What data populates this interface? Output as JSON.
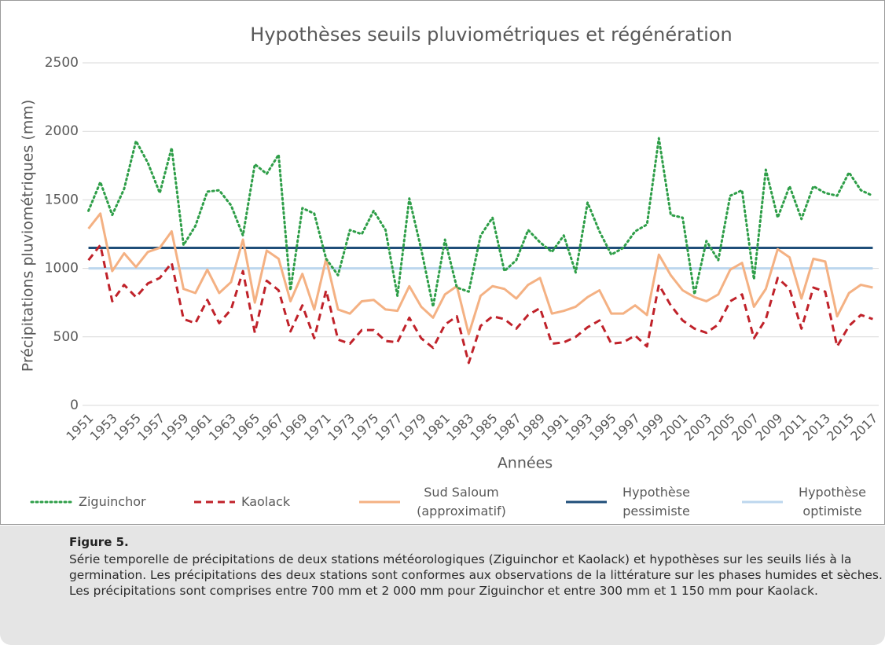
{
  "chart_data": {
    "type": "line",
    "title": "Hypothèses seuils pluviométriques et régénération",
    "x_label": "Années",
    "y_label": "Précipitations pluviométriques (mm)",
    "categories": [
      "1951",
      null,
      "1953",
      null,
      "1955",
      null,
      "1957",
      null,
      "1959",
      null,
      "1961",
      null,
      "1963",
      null,
      "1965",
      null,
      "1967",
      null,
      "1969",
      null,
      "1971",
      null,
      "1973",
      null,
      "1975",
      null,
      "1977",
      null,
      "1979",
      null,
      "1981",
      null,
      "1983",
      null,
      "1985",
      null,
      "1987",
      null,
      "1989",
      null,
      "1991",
      null,
      "1993",
      null,
      "1995",
      null,
      "1997",
      null,
      "1999",
      null,
      "2001",
      null,
      "2003",
      null,
      "2005",
      null,
      "2007",
      null,
      "2009",
      null,
      "2011",
      null,
      "2013",
      null,
      "2015",
      null,
      "2017"
    ],
    "ylim": [
      0,
      2500
    ],
    "yticks": [
      0,
      500,
      1000,
      1500,
      2000,
      2500
    ],
    "grid": true,
    "legend": "bottom",
    "series": [
      {
        "name": "Ziguinchor",
        "color": "#2e9e48",
        "line_style": "dotted",
        "values": [
          1420,
          1630,
          1390,
          1580,
          1930,
          1770,
          1550,
          1880,
          1170,
          1310,
          1560,
          1570,
          1460,
          1240,
          1760,
          1690,
          1830,
          840,
          1440,
          1400,
          1070,
          950,
          1280,
          1250,
          1420,
          1280,
          800,
          1510,
          1140,
          720,
          1210,
          860,
          830,
          1240,
          1370,
          980,
          1060,
          1280,
          1190,
          1120,
          1240,
          970,
          1480,
          1270,
          1100,
          1150,
          1270,
          1320,
          1950,
          1390,
          1370,
          810,
          1200,
          1060,
          1530,
          1570,
          920,
          1720,
          1370,
          1600,
          1360,
          1600,
          1550,
          1530,
          1700,
          1570,
          1530
        ]
      },
      {
        "name": "Kaolack",
        "color": "#c0222a",
        "line_style": "dashed",
        "values": [
          1060,
          1170,
          760,
          880,
          790,
          890,
          930,
          1040,
          630,
          600,
          770,
          600,
          700,
          980,
          530,
          910,
          840,
          540,
          730,
          490,
          840,
          480,
          450,
          550,
          550,
          470,
          460,
          640,
          490,
          420,
          590,
          650,
          310,
          580,
          650,
          630,
          560,
          660,
          710,
          450,
          460,
          500,
          570,
          620,
          450,
          460,
          510,
          430,
          880,
          730,
          620,
          560,
          530,
          590,
          760,
          810,
          490,
          630,
          930,
          850,
          560,
          860,
          830,
          430,
          580,
          660,
          630
        ]
      },
      {
        "name": "Sud Saloum (approximatif)",
        "color": "#f4b183",
        "line_style": "solid",
        "values": [
          1290,
          1400,
          980,
          1110,
          1010,
          1120,
          1150,
          1270,
          850,
          820,
          990,
          820,
          900,
          1210,
          750,
          1130,
          1070,
          760,
          960,
          700,
          1070,
          700,
          670,
          760,
          770,
          700,
          690,
          870,
          720,
          640,
          810,
          870,
          520,
          800,
          870,
          850,
          780,
          880,
          930,
          670,
          690,
          720,
          790,
          840,
          670,
          670,
          730,
          660,
          1100,
          950,
          840,
          790,
          760,
          810,
          990,
          1040,
          720,
          850,
          1140,
          1080,
          780,
          1070,
          1050,
          650,
          820,
          880,
          860
        ]
      },
      {
        "name": "Hypothèse pessimiste",
        "color": "#1f4e79",
        "line_style": "solid",
        "values": [
          1150,
          1150,
          1150,
          1150,
          1150,
          1150,
          1150,
          1150,
          1150,
          1150,
          1150,
          1150,
          1150,
          1150,
          1150,
          1150,
          1150,
          1150,
          1150,
          1150,
          1150,
          1150,
          1150,
          1150,
          1150,
          1150,
          1150,
          1150,
          1150,
          1150,
          1150,
          1150,
          1150,
          1150,
          1150,
          1150,
          1150,
          1150,
          1150,
          1150,
          1150,
          1150,
          1150,
          1150,
          1150,
          1150,
          1150,
          1150,
          1150,
          1150,
          1150,
          1150,
          1150,
          1150,
          1150,
          1150,
          1150,
          1150,
          1150,
          1150,
          1150,
          1150,
          1150,
          1150,
          1150,
          1150,
          1150
        ]
      },
      {
        "name": "Hypothèse optimiste",
        "color": "#bdd7ee",
        "line_style": "solid",
        "values": [
          1000,
          1000,
          1000,
          1000,
          1000,
          1000,
          1000,
          1000,
          1000,
          1000,
          1000,
          1000,
          1000,
          1000,
          1000,
          1000,
          1000,
          1000,
          1000,
          1000,
          1000,
          1000,
          1000,
          1000,
          1000,
          1000,
          1000,
          1000,
          1000,
          1000,
          1000,
          1000,
          1000,
          1000,
          1000,
          1000,
          1000,
          1000,
          1000,
          1000,
          1000,
          1000,
          1000,
          1000,
          1000,
          1000,
          1000,
          1000,
          1000,
          1000,
          1000,
          1000,
          1000,
          1000,
          1000,
          1000,
          1000,
          1000,
          1000,
          1000,
          1000,
          1000,
          1000,
          1000,
          1000,
          1000,
          1000
        ]
      }
    ]
  },
  "caption": {
    "title": "Figure 5.",
    "text": "Série temporelle de précipitations de deux stations météorologiques (Ziguinchor et Kaolack) et hypothèses sur les seuils liés à la germination. Les précipitations des deux stations sont conformes aux observations de la littérature sur les phases humides et sèches. Les précipitations sont comprises entre 700 mm et 2 000 mm pour Ziguinchor et entre 300 mm et 1 150 mm pour Kaolack."
  }
}
